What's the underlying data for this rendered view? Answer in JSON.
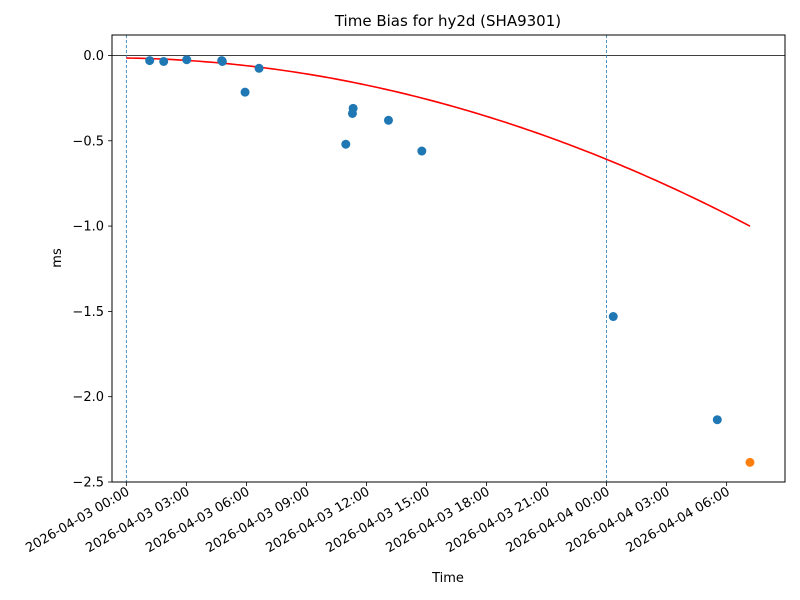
{
  "chart_data": {
    "type": "scatter",
    "title": "Time Bias for hy2d (SHA9301)",
    "xlabel": "Time",
    "ylabel": "ms",
    "x_axis_type": "datetime",
    "xlim": [
      "2026-04-02 23:17",
      "2026-04-04 08:55"
    ],
    "ylim": [
      -2.5,
      0.12
    ],
    "x_ticks": [
      "2026-04-03 00:00",
      "2026-04-03 03:00",
      "2026-04-03 06:00",
      "2026-04-03 09:00",
      "2026-04-03 12:00",
      "2026-04-03 15:00",
      "2026-04-03 18:00",
      "2026-04-03 21:00",
      "2026-04-04 00:00",
      "2026-04-04 03:00",
      "2026-04-04 06:00"
    ],
    "y_ticks": [
      "0.0",
      "−0.5",
      "−1.0",
      "−1.5",
      "−2.0",
      "−2.5"
    ],
    "y_tick_values": [
      0.0,
      -0.5,
      -1.0,
      -1.5,
      -2.0,
      -2.5
    ],
    "grid": false,
    "reference_lines": {
      "horizontal": [
        0.0
      ],
      "vertical": [
        "2026-04-03 00:00",
        "2026-04-04 00:00"
      ]
    },
    "series": [
      {
        "kind": "scatter",
        "color": "#1f77b4",
        "points": [
          [
            "2026-04-03 01:10",
            -0.03
          ],
          [
            "2026-04-03 01:52",
            -0.035
          ],
          [
            "2026-04-03 03:01",
            -0.025
          ],
          [
            "2026-04-03 04:46",
            -0.03
          ],
          [
            "2026-04-03 04:48",
            -0.035
          ],
          [
            "2026-04-03 05:56",
            -0.215
          ],
          [
            "2026-04-03 06:38",
            -0.075
          ],
          [
            "2026-04-03 10:58",
            -0.52
          ],
          [
            "2026-04-03 11:18",
            -0.34
          ],
          [
            "2026-04-03 11:20",
            -0.31
          ],
          [
            "2026-04-03 13:06",
            -0.38
          ],
          [
            "2026-04-03 14:46",
            -0.56
          ],
          [
            "2026-04-04 00:20",
            -1.53
          ],
          [
            "2026-04-04 05:32",
            -2.135
          ]
        ]
      },
      {
        "kind": "scatter",
        "color": "#ff7f0e",
        "points": [
          [
            "2026-04-04 07:10",
            -2.385
          ]
        ]
      },
      {
        "kind": "line",
        "color": "#ff0000",
        "fit": "quadratic",
        "x_range": [
          "2026-04-03 00:00",
          "2026-04-04 07:10"
        ],
        "coefficients_ms_per_hour": {
          "a": -0.00096,
          "b": -0.0017,
          "c": -0.015
        }
      }
    ]
  }
}
